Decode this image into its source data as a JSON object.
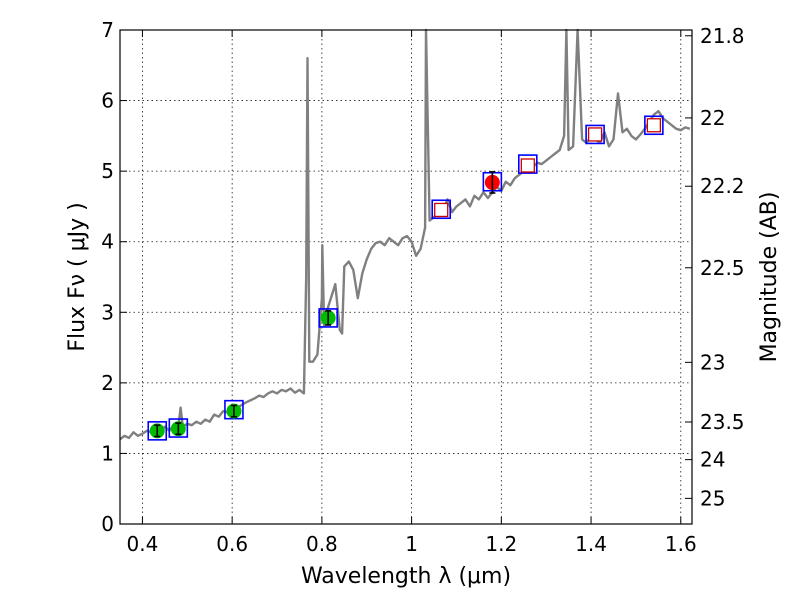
{
  "chart_data": {
    "type": "line",
    "xlabel": "Wavelength  λ (μm)",
    "ylabel": "Flux  Fν  ( μJy )",
    "y2label": "Magnitude (AB)",
    "xlim": [
      0.35,
      1.625
    ],
    "ylim": [
      0,
      7
    ],
    "grid": true,
    "x_ticks": [
      "0.4",
      "0.6",
      "0.8",
      "1",
      "1.2",
      "1.4",
      "1.6"
    ],
    "x_tick_values": [
      0.4,
      0.6,
      0.8,
      1.0,
      1.2,
      1.4,
      1.6
    ],
    "y_ticks": [
      "0",
      "1",
      "2",
      "3",
      "4",
      "5",
      "6",
      "7"
    ],
    "y_tick_values": [
      0,
      1,
      2,
      3,
      4,
      5,
      6,
      7
    ],
    "mag_ticks": [
      "21.8",
      "22",
      "22.2",
      "22.5",
      "23",
      "23.5",
      "24",
      "25"
    ],
    "mag_tick_values": [
      21.8,
      22,
      22.2,
      22.5,
      23,
      23.5,
      24,
      25
    ],
    "colors": {
      "spectrum": "#808080",
      "model_box": "#0000ff",
      "observed": "#00bb00",
      "observed_red": "#ff0000",
      "upper_limit": "#cc0000",
      "errorbar": "#000000"
    },
    "spectrum": {
      "name": "",
      "x": [
        0.35,
        0.36,
        0.37,
        0.38,
        0.39,
        0.4,
        0.41,
        0.42,
        0.43,
        0.44,
        0.45,
        0.46,
        0.47,
        0.48,
        0.485,
        0.49,
        0.5,
        0.51,
        0.52,
        0.53,
        0.54,
        0.55,
        0.56,
        0.57,
        0.58,
        0.59,
        0.6,
        0.61,
        0.62,
        0.63,
        0.64,
        0.65,
        0.66,
        0.67,
        0.68,
        0.69,
        0.7,
        0.71,
        0.72,
        0.73,
        0.74,
        0.75,
        0.76,
        0.765,
        0.768,
        0.772,
        0.78,
        0.79,
        0.8,
        0.801,
        0.805,
        0.81,
        0.82,
        0.83,
        0.84,
        0.845,
        0.85,
        0.86,
        0.87,
        0.88,
        0.89,
        0.9,
        0.91,
        0.92,
        0.93,
        0.94,
        0.95,
        0.96,
        0.97,
        0.98,
        0.99,
        1.0,
        1.01,
        1.02,
        1.03,
        1.032,
        1.04,
        1.05,
        1.06,
        1.07,
        1.08,
        1.09,
        1.1,
        1.11,
        1.12,
        1.13,
        1.14,
        1.15,
        1.16,
        1.17,
        1.18,
        1.19,
        1.2,
        1.21,
        1.22,
        1.23,
        1.24,
        1.25,
        1.26,
        1.27,
        1.28,
        1.29,
        1.3,
        1.31,
        1.32,
        1.33,
        1.34,
        1.345,
        1.35,
        1.36,
        1.37,
        1.38,
        1.39,
        1.4,
        1.41,
        1.42,
        1.43,
        1.44,
        1.45,
        1.46,
        1.47,
        1.48,
        1.49,
        1.5,
        1.51,
        1.52,
        1.53,
        1.54,
        1.55,
        1.56,
        1.57,
        1.58,
        1.59,
        1.6,
        1.61,
        1.62
      ],
      "y": [
        1.2,
        1.25,
        1.22,
        1.3,
        1.25,
        1.28,
        1.32,
        1.3,
        1.35,
        1.3,
        1.38,
        1.32,
        1.4,
        1.38,
        1.65,
        1.38,
        1.42,
        1.4,
        1.45,
        1.42,
        1.48,
        1.45,
        1.55,
        1.52,
        1.6,
        1.58,
        1.62,
        1.65,
        1.68,
        1.72,
        1.75,
        1.78,
        1.82,
        1.8,
        1.85,
        1.88,
        1.85,
        1.9,
        1.88,
        1.92,
        1.86,
        1.9,
        1.85,
        3.5,
        6.6,
        2.3,
        2.3,
        2.4,
        3.2,
        3.95,
        2.8,
        3.0,
        3.2,
        3.4,
        2.75,
        2.7,
        3.65,
        3.72,
        3.6,
        3.2,
        3.55,
        3.75,
        3.9,
        3.98,
        4.0,
        3.95,
        4.05,
        4.0,
        3.95,
        4.05,
        4.08,
        4.0,
        3.8,
        3.9,
        4.2,
        7.2,
        4.3,
        4.35,
        4.4,
        4.45,
        4.6,
        4.42,
        4.5,
        4.55,
        4.6,
        4.5,
        4.65,
        4.6,
        4.7,
        4.62,
        4.7,
        4.78,
        4.72,
        4.85,
        4.8,
        4.9,
        4.95,
        5.0,
        4.98,
        5.05,
        5.12,
        5.1,
        5.15,
        5.2,
        5.25,
        5.3,
        5.5,
        7.2,
        5.3,
        5.35,
        7.2,
        5.45,
        5.4,
        5.5,
        5.45,
        5.4,
        5.55,
        5.35,
        5.45,
        6.1,
        5.55,
        5.6,
        5.5,
        5.45,
        5.52,
        5.6,
        5.7,
        5.8,
        5.85,
        5.75,
        5.7,
        5.65,
        5.6,
        5.58,
        5.62,
        5.6
      ]
    },
    "model_points": {
      "name": "",
      "x": [
        0.433,
        0.48,
        0.604,
        0.814,
        1.066,
        1.18,
        1.259,
        1.409,
        1.54
      ],
      "y": [
        1.32,
        1.36,
        1.62,
        2.92,
        4.46,
        4.85,
        5.1,
        5.52,
        5.65
      ]
    },
    "observed_points": {
      "name": "",
      "x": [
        0.433,
        0.48,
        0.604,
        0.814
      ],
      "y": [
        1.32,
        1.35,
        1.6,
        2.92
      ],
      "yerr": [
        0.08,
        0.08,
        0.08,
        0.1
      ]
    },
    "observed_point_red": {
      "name": "",
      "x": [
        1.18
      ],
      "y": [
        4.84
      ],
      "yerr": [
        0.15
      ]
    },
    "upper_limit_points": {
      "name": "",
      "x": [
        1.066,
        1.259,
        1.409,
        1.54
      ],
      "y": [
        4.45,
        5.08,
        5.52,
        5.65
      ]
    }
  }
}
